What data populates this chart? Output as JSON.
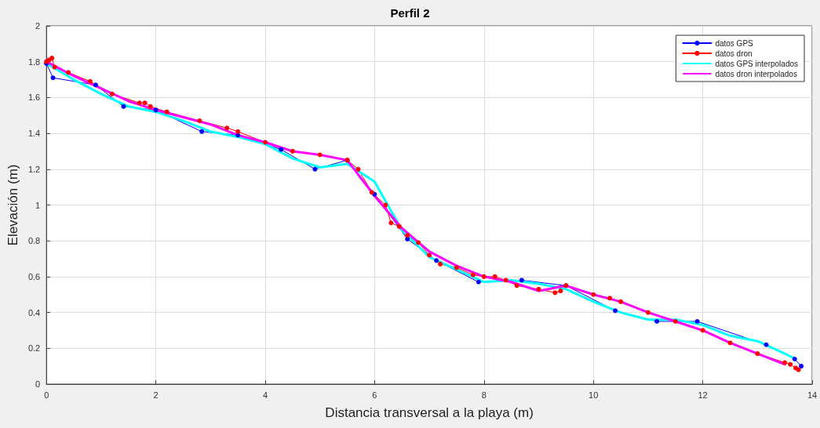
{
  "chart_data": {
    "type": "line",
    "title": "Perfil 2",
    "xlabel": "Distancia transversal a la playa (m)",
    "ylabel": "Elevación (m)",
    "xlim": [
      0,
      14
    ],
    "xticks": [
      0,
      2,
      4,
      6,
      8,
      10,
      12,
      14
    ],
    "ylim": [
      0,
      2
    ],
    "yticks": [
      0,
      0.2,
      0.4,
      0.6,
      0.8,
      1,
      1.2,
      1.4,
      1.6,
      1.8,
      2
    ],
    "grid": true,
    "legend": "top right",
    "line_style": "solid",
    "series": [
      {
        "name": "datos GPS",
        "color": "#0000ff",
        "marker": "circle",
        "x": [
          0,
          0.12,
          0.9,
          1.41,
          2.0,
          2.84,
          3.5,
          4.29,
          4.91,
          5.5,
          6.0,
          6.6,
          7.13,
          7.9,
          8.69,
          9.5,
          10.4,
          11.16,
          11.9,
          13.16,
          13.68,
          13.8
        ],
        "values": [
          1.79,
          1.71,
          1.67,
          1.55,
          1.53,
          1.41,
          1.39,
          1.31,
          1.2,
          1.25,
          1.06,
          0.81,
          0.69,
          0.57,
          0.58,
          0.55,
          0.41,
          0.35,
          0.35,
          0.22,
          0.14,
          0.1
        ]
      },
      {
        "name": "datos dron",
        "color": "#ff0000",
        "marker": "circle",
        "x": [
          0,
          0.05,
          0.1,
          0.15,
          0.4,
          0.8,
          1.2,
          1.7,
          1.8,
          1.9,
          2.2,
          2.8,
          3.3,
          3.5,
          4.0,
          4.5,
          5.0,
          5.5,
          5.7,
          5.95,
          6.2,
          6.3,
          6.45,
          6.6,
          6.8,
          7.0,
          7.2,
          7.5,
          7.8,
          8.0,
          8.2,
          8.4,
          8.6,
          9.0,
          9.3,
          9.4,
          9.5,
          10.0,
          10.3,
          10.5,
          11.0,
          11.5,
          12.0,
          12.5,
          13.0,
          13.5,
          13.6,
          13.7,
          13.75
        ],
        "values": [
          1.8,
          1.81,
          1.82,
          1.77,
          1.74,
          1.69,
          1.62,
          1.57,
          1.57,
          1.55,
          1.52,
          1.47,
          1.43,
          1.41,
          1.35,
          1.3,
          1.28,
          1.25,
          1.2,
          1.07,
          1.0,
          0.9,
          0.88,
          0.83,
          0.79,
          0.72,
          0.67,
          0.65,
          0.61,
          0.6,
          0.6,
          0.58,
          0.55,
          0.53,
          0.51,
          0.52,
          0.55,
          0.5,
          0.48,
          0.46,
          0.4,
          0.35,
          0.3,
          0.23,
          0.17,
          0.12,
          0.11,
          0.09,
          0.08
        ]
      },
      {
        "name": "datos GPS interpolados",
        "color": "#00ffff",
        "marker": "none",
        "x": [
          0,
          0.5,
          1,
          1.5,
          2,
          2.5,
          3,
          3.5,
          4,
          4.5,
          5,
          5.5,
          6,
          6.5,
          7,
          7.5,
          8,
          8.5,
          9,
          9.5,
          10,
          10.5,
          11,
          11.5,
          12,
          12.5,
          13,
          13.5,
          13.7
        ],
        "values": [
          1.79,
          1.7,
          1.62,
          1.55,
          1.52,
          1.47,
          1.41,
          1.38,
          1.34,
          1.26,
          1.21,
          1.23,
          1.13,
          0.86,
          0.71,
          0.64,
          0.57,
          0.58,
          0.56,
          0.53,
          0.46,
          0.4,
          0.36,
          0.36,
          0.33,
          0.27,
          0.24,
          0.17,
          0.14
        ]
      },
      {
        "name": "datos dron interpolados",
        "color": "#ff00ff",
        "marker": "none",
        "x": [
          0,
          0.5,
          1,
          1.5,
          2,
          2.5,
          3,
          3.5,
          4,
          4.5,
          5,
          5.5,
          6,
          6.5,
          7,
          7.5,
          8,
          8.5,
          9,
          9.5,
          10,
          10.5,
          11,
          11.5,
          12,
          12.5,
          13,
          13.5
        ],
        "values": [
          1.8,
          1.72,
          1.65,
          1.58,
          1.53,
          1.49,
          1.45,
          1.39,
          1.35,
          1.3,
          1.28,
          1.25,
          1.05,
          0.87,
          0.74,
          0.66,
          0.6,
          0.57,
          0.52,
          0.55,
          0.5,
          0.46,
          0.4,
          0.35,
          0.3,
          0.23,
          0.17,
          0.11
        ]
      }
    ]
  }
}
